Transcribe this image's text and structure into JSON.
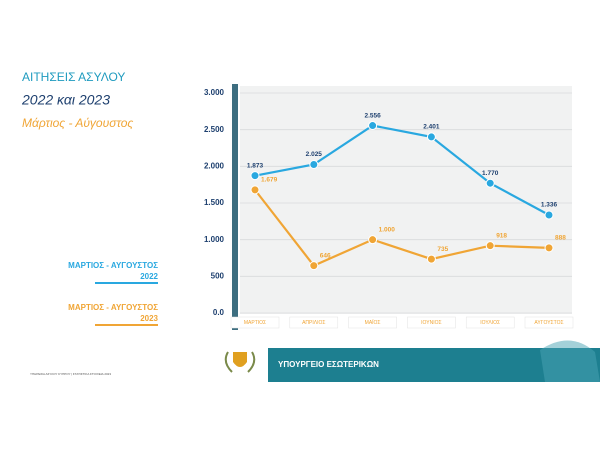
{
  "chart_data": {
    "type": "line",
    "title": "ΑΙΤΗΣΕΙΣ ΑΣΥΛΟΥ",
    "subtitle": "2022 και 2023",
    "period": "Μάρτιος - Αύγουστος",
    "categories": [
      "ΜΑΡΤΙΟΣ",
      "ΑΠΡΙΛΙΟΣ",
      "ΜΑΪΟΣ",
      "ΙΟΥΝΙΟΣ",
      "ΙΟΥΛΙΟΣ",
      "ΑΥΓΟΥΣΤΟΣ"
    ],
    "series": [
      {
        "name": "ΜΑΡΤΙΟΣ - ΑΥΓΟΥΣΤΟΣ\n2022",
        "color": "#29a8e0",
        "label_color": "#1d3f6e",
        "values": [
          1873,
          2025,
          2556,
          2401,
          1770,
          1336
        ],
        "value_labels": [
          "1.873",
          "2.025",
          "2.556",
          "2.401",
          "1.770",
          "1.336"
        ]
      },
      {
        "name": "ΜΑΡΤΙΟΣ - ΑΥΓΟΥΣΤΟΣ\n2023",
        "color": "#f0a535",
        "label_color": "#f0a535",
        "values": [
          1679,
          646,
          1000,
          735,
          918,
          888
        ],
        "value_labels": [
          "1.679",
          "646",
          "1.000",
          "735",
          "918",
          "888"
        ]
      }
    ],
    "ylim": [
      0,
      3000
    ],
    "yticks": [
      {
        "value": 0,
        "label": "0.0"
      },
      {
        "value": 500,
        "label": "500"
      },
      {
        "value": 1000,
        "label": "1.000"
      },
      {
        "value": 1500,
        "label": "1.500"
      },
      {
        "value": 2000,
        "label": "2.000"
      },
      {
        "value": 2500,
        "label": "2.500"
      },
      {
        "value": 3000,
        "label": "3.000"
      }
    ],
    "grid": true,
    "ministry": "ΥΠΟΥΡΓΕΙΟ ΕΣΩΤΕΡΙΚΩΝ",
    "footnote": "ΥΠΗΡΕΣΙΑ ΑΣΥΛΟΥ ΚΥΠΡΟΥ | ΣΤΑΤΙΣΤΙΚΑ ΣΤΟΙΧΕΙΑ 2023"
  }
}
